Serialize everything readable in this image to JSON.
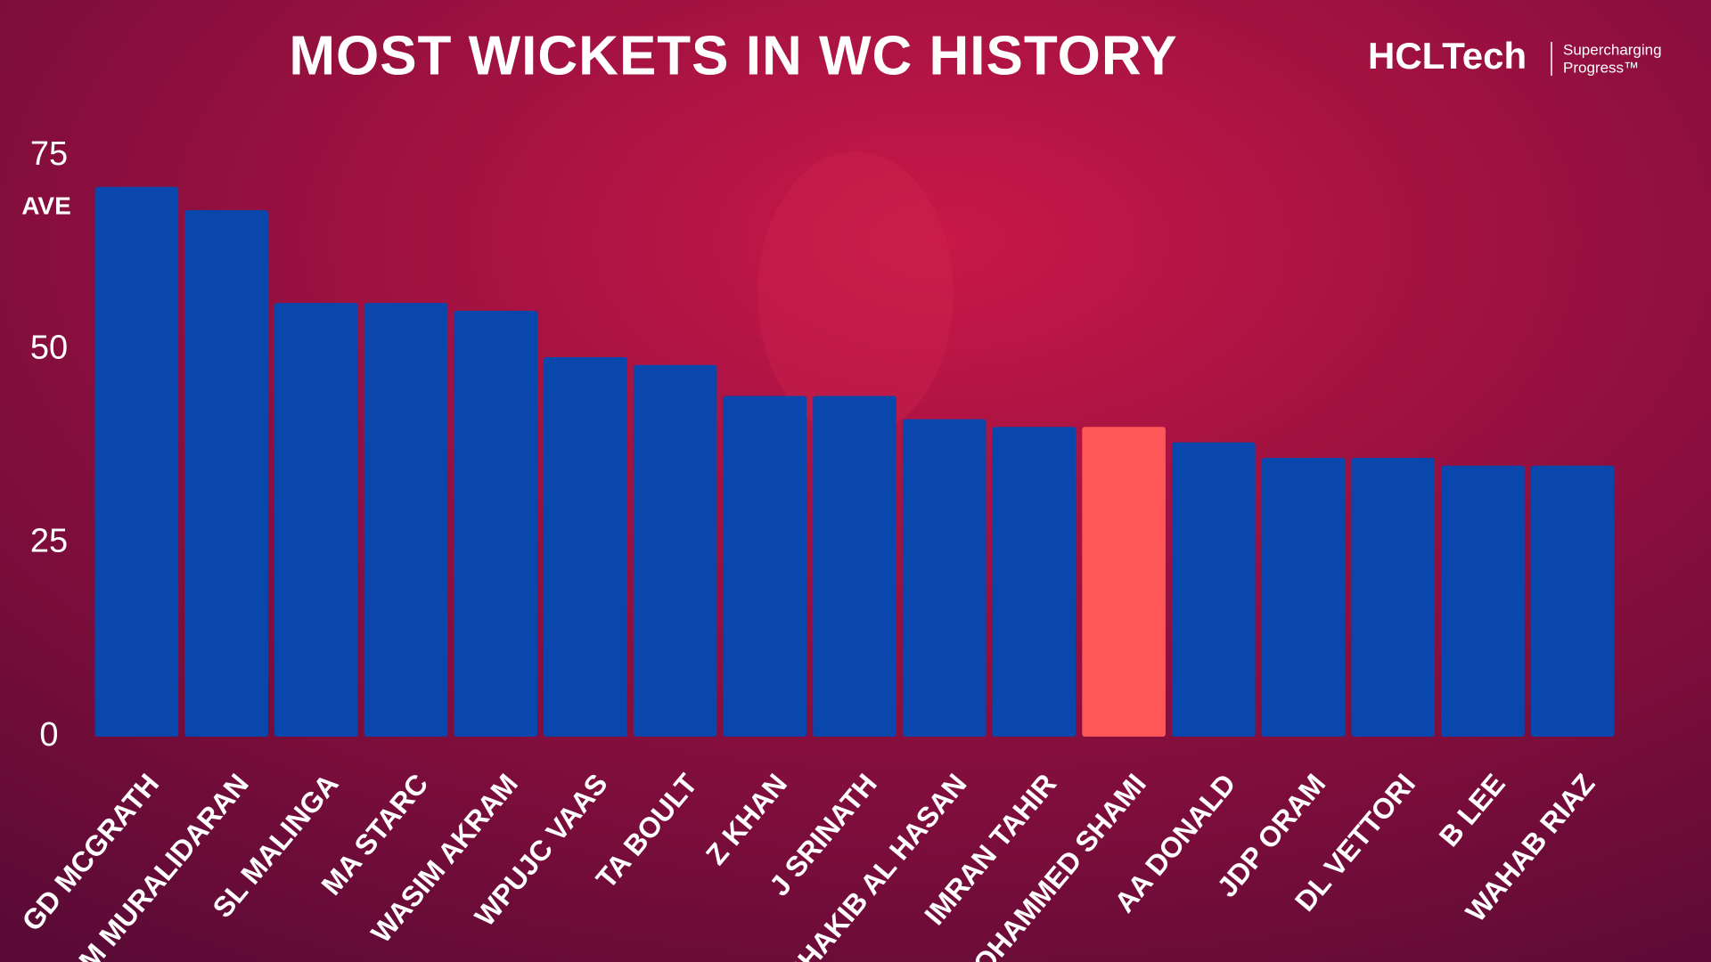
{
  "chart_data": {
    "type": "bar",
    "title": "MOST WICKETS IN WC HISTORY",
    "y_label": "AVE",
    "categories": [
      "GD MCGRATH",
      "M MURALIDARAN",
      "SL MALINGA",
      "MA STARC",
      "WASIM AKRAM",
      "WPUJC VAAS",
      "TA BOULT",
      "Z KHAN",
      "J SRINATH",
      "SHAKIB AL HASAN",
      "IMRAN TAHIR",
      "MOHAMMED SHAMI",
      "AA DONALD",
      "JDP ORAM",
      "DL VETTORI",
      "B LEE",
      "WAHAB RIAZ"
    ],
    "values": [
      71,
      68,
      56,
      56,
      55,
      49,
      48,
      44,
      44,
      41,
      40,
      40,
      38,
      36,
      36,
      35,
      35
    ],
    "colors": [
      "#0a47ad",
      "#0a47ad",
      "#0a47ad",
      "#0a47ad",
      "#0a47ad",
      "#0a47ad",
      "#0a47ad",
      "#0a47ad",
      "#0a47ad",
      "#0a47ad",
      "#0a47ad",
      "#ff5757",
      "#0a47ad",
      "#0a47ad",
      "#0a47ad",
      "#0a47ad",
      "#0a47ad"
    ],
    "ylim": [
      0,
      75
    ],
    "yticks": [
      0,
      25,
      50,
      75
    ],
    "grid": false
  },
  "logo": {
    "brand": "HCLTech",
    "tagline_1": "Supercharging",
    "tagline_2": "Progress™"
  }
}
